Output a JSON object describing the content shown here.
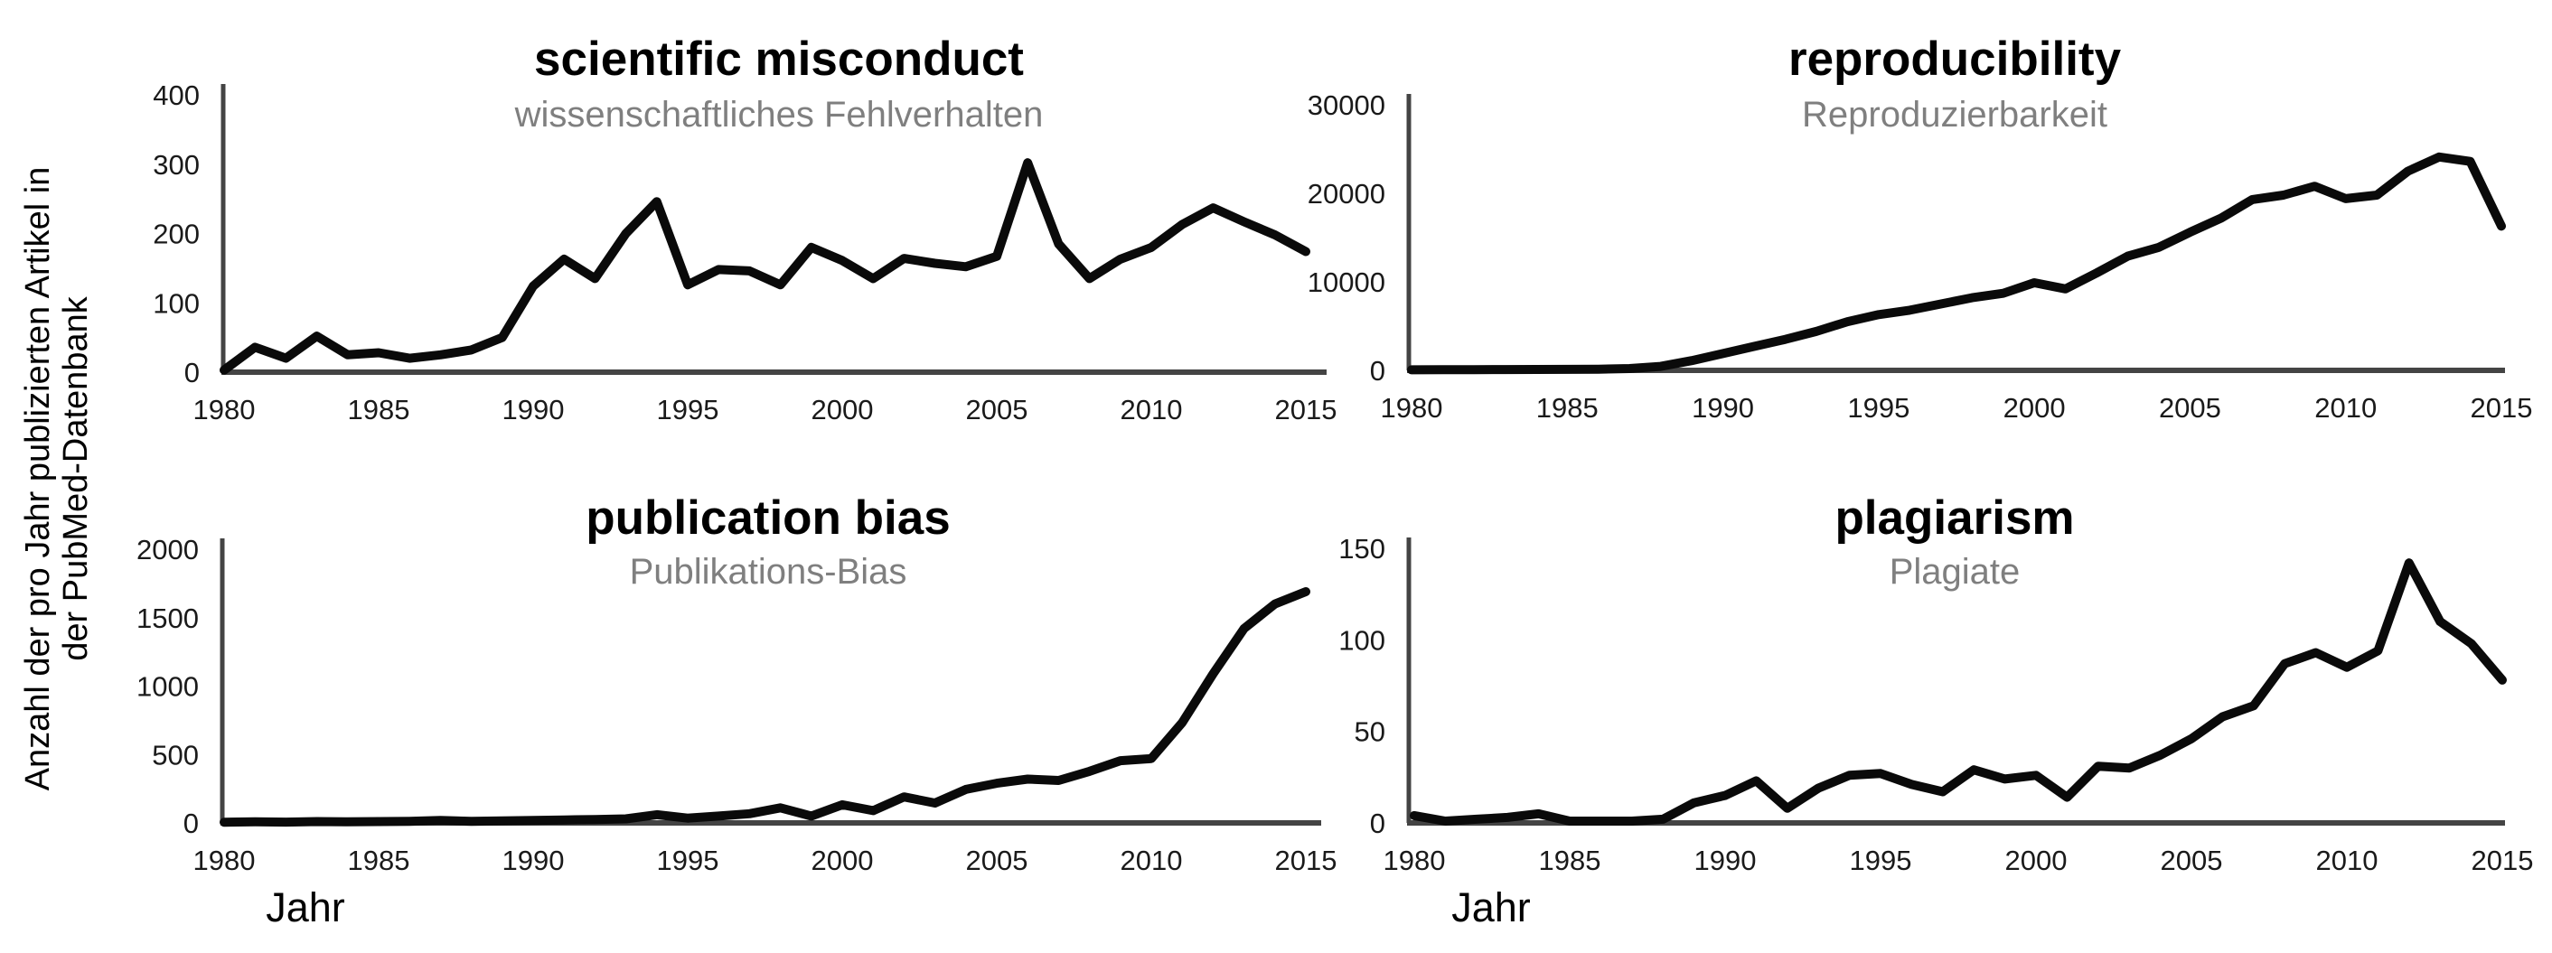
{
  "figure": {
    "ylabel_line1": "Anzahl der pro Jahr publizierten Artikel in",
    "ylabel_line2": "der PubMed-Datenbank",
    "xlabel": "Jahr",
    "background_color": "#ffffff",
    "line_color": "#0a0a0a",
    "axis_color": "#444444",
    "tick_color": "#1a1a1a",
    "title_color": "#000000",
    "subtitle_color": "#7f7f7f"
  },
  "years": [
    1980,
    1981,
    1982,
    1983,
    1984,
    1985,
    1986,
    1987,
    1988,
    1989,
    1990,
    1991,
    1992,
    1993,
    1994,
    1995,
    1996,
    1997,
    1998,
    1999,
    2000,
    2001,
    2002,
    2003,
    2004,
    2005,
    2006,
    2007,
    2008,
    2009,
    2010,
    2011,
    2012,
    2013,
    2014,
    2015
  ],
  "chart_data": [
    {
      "type": "line",
      "title": "scientific misconduct",
      "subtitle": "wissenschaftliches Fehlverhalten",
      "xlabel": "",
      "ylabel": "",
      "x_ticks": [
        1980,
        1985,
        1990,
        1995,
        2000,
        2005,
        2010,
        2015
      ],
      "y_ticks": [
        0,
        100,
        200,
        300,
        400
      ],
      "ylim": [
        0,
        400
      ],
      "grid": false,
      "legend": "none",
      "values": [
        3,
        36,
        20,
        52,
        25,
        28,
        20,
        25,
        32,
        50,
        124,
        163,
        135,
        200,
        246,
        126,
        148,
        146,
        126,
        180,
        161,
        135,
        164,
        157,
        152,
        167,
        302,
        185,
        135,
        163,
        180,
        213,
        237,
        217,
        198,
        174
      ]
    },
    {
      "type": "line",
      "title": "reproducibility",
      "subtitle": "Reproduzierbarkeit",
      "xlabel": "",
      "ylabel": "",
      "x_ticks": [
        1980,
        1985,
        1990,
        1995,
        2000,
        2005,
        2010,
        2015
      ],
      "y_ticks": [
        0,
        10000,
        20000,
        30000
      ],
      "ylim": [
        0,
        30000
      ],
      "grid": false,
      "legend": "none",
      "values": [
        60,
        70,
        80,
        90,
        100,
        110,
        130,
        200,
        450,
        1100,
        1900,
        2700,
        3500,
        4400,
        5500,
        6300,
        6800,
        7500,
        8200,
        8700,
        9900,
        9200,
        11000,
        12900,
        13900,
        15600,
        17200,
        19300,
        19800,
        20800,
        19400,
        19800,
        22500,
        24100,
        23600,
        16300
      ]
    },
    {
      "type": "line",
      "title": "publication bias",
      "subtitle": "Publikations-Bias",
      "xlabel": "Jahr",
      "ylabel": "",
      "x_ticks": [
        1980,
        1985,
        1990,
        1995,
        2000,
        2005,
        2010,
        2015
      ],
      "y_ticks": [
        0,
        500,
        1000,
        1500,
        2000
      ],
      "ylim": [
        0,
        2000
      ],
      "grid": false,
      "legend": "none",
      "values": [
        5,
        8,
        6,
        10,
        8,
        10,
        12,
        18,
        12,
        15,
        18,
        22,
        25,
        30,
        60,
        35,
        50,
        67,
        110,
        50,
        133,
        90,
        190,
        145,
        245,
        290,
        320,
        310,
        377,
        455,
        470,
        733,
        1090,
        1420,
        1600,
        1690
      ]
    },
    {
      "type": "line",
      "title": "plagiarism",
      "subtitle": "Plagiate",
      "xlabel": "Jahr",
      "ylabel": "",
      "x_ticks": [
        1980,
        1985,
        1990,
        1995,
        2000,
        2005,
        2010,
        2015
      ],
      "y_ticks": [
        0,
        50,
        100,
        150
      ],
      "ylim": [
        0,
        150
      ],
      "grid": false,
      "legend": "none",
      "values": [
        4,
        1,
        2,
        3,
        5,
        1,
        1,
        1,
        2,
        11,
        15,
        23,
        8,
        19,
        26,
        27,
        21,
        17,
        29,
        24,
        26,
        14,
        31,
        30,
        37,
        46,
        58,
        64,
        87,
        93,
        85,
        94,
        142,
        110,
        98,
        78
      ]
    }
  ]
}
